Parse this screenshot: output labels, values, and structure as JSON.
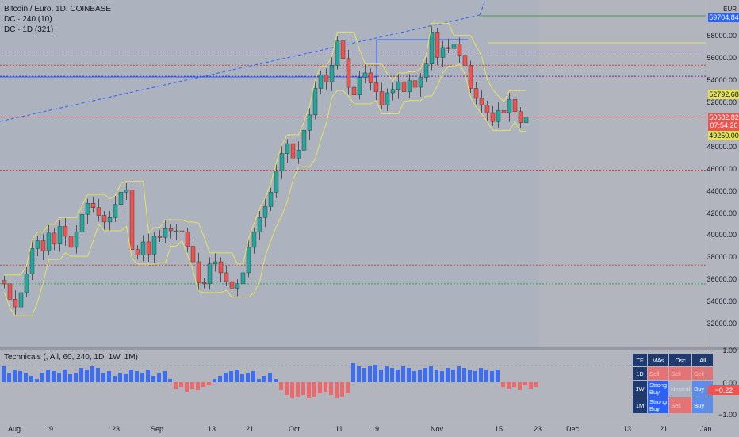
{
  "legend": {
    "symbol": "Bitcoin / Euro, 1D, COINBASE",
    "ind1": "DC · 240 (10)",
    "ind2": "DC · 1D (321)"
  },
  "currency": "EUR",
  "price_axis": [
    "58000.00",
    "56000.00",
    "54000.00",
    "52000.00",
    "48000.00",
    "46000.00",
    "44000.00",
    "42000.00",
    "40000.00",
    "38000.00",
    "36000.00",
    "34000.00",
    "32000.00"
  ],
  "tags": {
    "top": "59704.84",
    "yellow1": "52792.68",
    "current": "50682.82",
    "countdown": "07:54:26",
    "yellow2": "49250.00",
    "osc_val": "−0.22"
  },
  "osc": {
    "title": "Technicals (, All, 60, 240, 1D, 1W, 1M)",
    "axis": [
      "1.00",
      "0.00",
      "−1.00"
    ]
  },
  "table": {
    "headers": [
      "TF",
      "MAs",
      "Osc",
      "All"
    ],
    "rows": [
      {
        "tf": "1D",
        "mas": "Sell",
        "osc": "Sell",
        "all": "Sell"
      },
      {
        "tf": "1W",
        "mas": "Strong Buy",
        "osc": "Neutral",
        "all": "Buy"
      },
      {
        "tf": "1M",
        "mas": "Strong Buy",
        "osc": "Sell",
        "all": "Buy"
      }
    ]
  },
  "time_axis": [
    "Aug",
    "9",
    "23",
    "Sep",
    "13",
    "21",
    "Oct",
    "11",
    "19",
    "Nov",
    "15",
    "23",
    "Dec",
    "13",
    "21",
    "Jan"
  ],
  "colors": {
    "up": "#26a69a",
    "down": "#ef5350",
    "blue": "#2962ff",
    "yellow": "#e6e35a",
    "purple": "#7b1fa2",
    "red_dot": "#e53935",
    "green_dot": "#2e7d32"
  }
}
